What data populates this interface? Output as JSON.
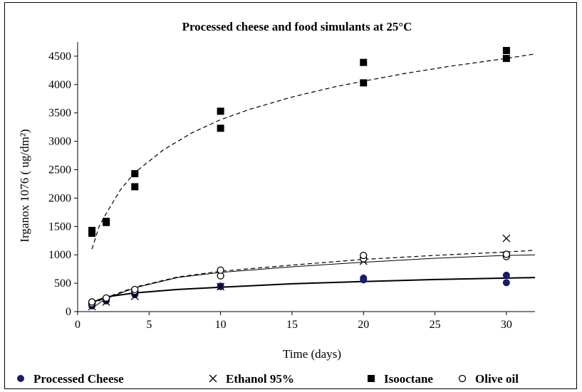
{
  "chart_data": {
    "type": "scatter",
    "title": "Processed cheese and food simulants at 25°C",
    "xlabel": "Time (days)",
    "ylabel": "Irganox 1076 ( ug/dm²)",
    "xlim": [
      0,
      32
    ],
    "ylim": [
      0,
      4750
    ],
    "xticks": [
      0,
      5,
      10,
      15,
      20,
      25,
      30
    ],
    "yticks": [
      0,
      500,
      1000,
      1500,
      2000,
      2500,
      3000,
      3500,
      4000,
      4500
    ],
    "grid": false,
    "legend_position": "bottom",
    "series": [
      {
        "name": "Processed Cheese",
        "marker": "filled-circle",
        "color": "#1a1a6e",
        "points": [
          [
            1,
            100
          ],
          [
            1,
            120
          ],
          [
            2,
            190
          ],
          [
            2,
            200
          ],
          [
            4,
            300
          ],
          [
            4,
            320
          ],
          [
            10,
            440
          ],
          [
            10,
            450
          ],
          [
            20,
            560
          ],
          [
            20,
            590
          ],
          [
            30,
            510
          ],
          [
            30,
            640
          ]
        ],
        "trend": {
          "style": "solid-thick",
          "points": [
            [
              1,
              160
            ],
            [
              2,
              260
            ],
            [
              4,
              330
            ],
            [
              7,
              390
            ],
            [
              10,
              430
            ],
            [
              15,
              490
            ],
            [
              20,
              530
            ],
            [
              25,
              565
            ],
            [
              30,
              590
            ],
            [
              32,
              600
            ]
          ]
        }
      },
      {
        "name": "Ethanol 95%",
        "marker": "x",
        "color": "#000000",
        "points": [
          [
            1,
            90
          ],
          [
            2,
            170
          ],
          [
            4,
            270
          ],
          [
            10,
            440
          ],
          [
            20,
            890
          ],
          [
            30,
            1290
          ]
        ],
        "trend": {
          "style": "solid-thin",
          "points": [
            [
              1,
              60
            ],
            [
              2,
              230
            ],
            [
              4,
              420
            ],
            [
              7,
              600
            ],
            [
              10,
              690
            ],
            [
              15,
              790
            ],
            [
              20,
              870
            ],
            [
              25,
              940
            ],
            [
              30,
              990
            ],
            [
              32,
              1000
            ]
          ]
        }
      },
      {
        "name": "Isooctane",
        "marker": "filled-square",
        "color": "#000000",
        "points": [
          [
            1,
            1380
          ],
          [
            1,
            1430
          ],
          [
            2,
            1570
          ],
          [
            2,
            1590
          ],
          [
            4,
            2200
          ],
          [
            4,
            2430
          ],
          [
            10,
            3230
          ],
          [
            10,
            3530
          ],
          [
            20,
            4030
          ],
          [
            20,
            4390
          ],
          [
            30,
            4460
          ],
          [
            30,
            4600
          ]
        ],
        "trend": {
          "style": "dashed",
          "points": [
            [
              1,
              1100
            ],
            [
              1.5,
              1500
            ],
            [
              2,
              1730
            ],
            [
              3,
              2150
            ],
            [
              4,
              2450
            ],
            [
              6,
              2850
            ],
            [
              8,
              3150
            ],
            [
              10,
              3380
            ],
            [
              12,
              3560
            ],
            [
              15,
              3780
            ],
            [
              18,
              3960
            ],
            [
              20,
              4060
            ],
            [
              23,
              4200
            ],
            [
              26,
              4320
            ],
            [
              30,
              4460
            ],
            [
              32,
              4540
            ]
          ]
        }
      },
      {
        "name": "Olive oil",
        "marker": "open-circle",
        "color": "#000000",
        "points": [
          [
            1,
            140
          ],
          [
            1,
            170
          ],
          [
            2,
            230
          ],
          [
            2,
            240
          ],
          [
            4,
            360
          ],
          [
            4,
            390
          ],
          [
            10,
            630
          ],
          [
            10,
            730
          ],
          [
            20,
            930
          ],
          [
            20,
            990
          ],
          [
            30,
            970
          ],
          [
            30,
            1010
          ]
        ],
        "trend": {
          "style": "dashed",
          "points": [
            [
              1,
              130
            ],
            [
              2,
              250
            ],
            [
              4,
              430
            ],
            [
              7,
              610
            ],
            [
              10,
              710
            ],
            [
              15,
              820
            ],
            [
              20,
              920
            ],
            [
              25,
              990
            ],
            [
              30,
              1050
            ],
            [
              32,
              1080
            ]
          ]
        }
      }
    ]
  }
}
